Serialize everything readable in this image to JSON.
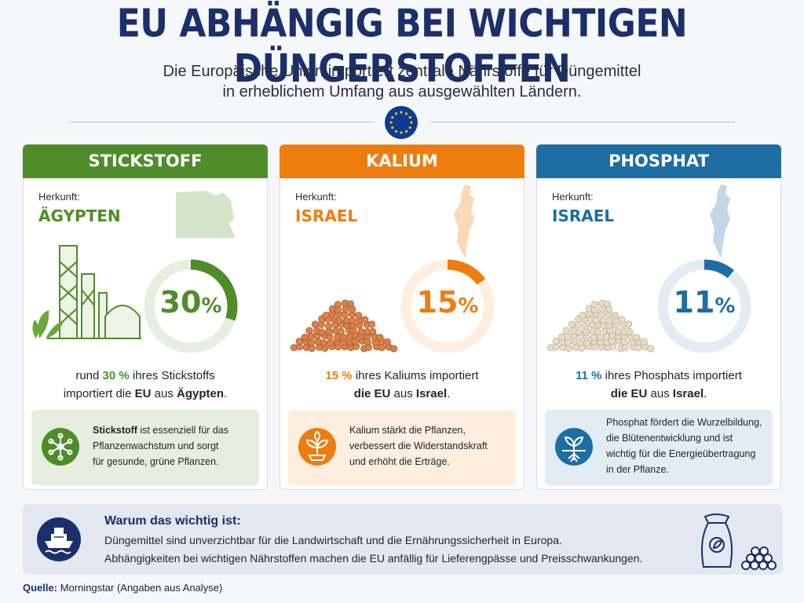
{
  "header": {
    "title": "EU ABHÄNGIG BEI WICHTIGEN DÜNGERSTOFFEN",
    "subtitle_line1": "Die Europäische Union importiert zentrale Nährstoffe für Düngemittel",
    "subtitle_line2": "in erheblichem Umfang aus ausgewählten Ländern."
  },
  "cards": [
    {
      "name": "STICKSTOFF",
      "color": "#4f8c2a",
      "light_color": "#e7eedf",
      "origin_label": "Herkunft:",
      "origin": "ÄGYPTEN",
      "percent_value": 30,
      "percent_number": "30",
      "percent_sign": "%",
      "statement": {
        "a1": "rund ",
        "a2": "30 %",
        "a3": " ihres Stickstoffs",
        "b1": "importiert die ",
        "b2": "EU",
        "b3": " aus ",
        "b4": "Ägypten",
        "b5": "."
      },
      "info_bold": "Stickstoff",
      "info_line1": " ist essenziell für das",
      "info_line2": "Pflanzenwachstum und sorgt",
      "info_line3": "für gesunde, grüne Pflanzen.",
      "info_line4": "",
      "info_icon": "molecule-icon",
      "illustration": "fertilizer-plant-illustration"
    },
    {
      "name": "KALIUM",
      "color": "#ee7d0f",
      "light_color": "#fdeee0",
      "origin_label": "Herkunft:",
      "origin": "ISRAEL",
      "percent_value": 15,
      "percent_number": "15",
      "percent_sign": "%",
      "statement": {
        "a1": "",
        "a2": "15 %",
        "a3": " ihres Kaliums importiert",
        "b1": "",
        "b2": "die EU",
        "b3": " aus ",
        "b4": "Israel",
        "b5": "."
      },
      "info_bold": "",
      "info_line1": "Kalium stärkt die Pflanzen,",
      "info_line2": "verbessert die Widerstandskraft",
      "info_line3": "und erhöht die Erträge.",
      "info_line4": "",
      "info_icon": "sprout-icon",
      "illustration": "potash-granules-illustration"
    },
    {
      "name": "PHOSPHAT",
      "color": "#1c6ea4",
      "light_color": "#e3ebf3",
      "origin_label": "Herkunft:",
      "origin": "ISRAEL",
      "percent_value": 11,
      "percent_number": "11",
      "percent_sign": "%",
      "statement": {
        "a1": "",
        "a2": "11 %",
        "a3": " ihres Phosphats importiert",
        "b1": "",
        "b2": "die EU",
        "b3": " aus ",
        "b4": "Israel",
        "b5": "."
      },
      "info_bold": "",
      "info_line1": "Phosphat fördert die Wurzelbildung,",
      "info_line2": "die Blütenentwicklung und ist",
      "info_line3": "wichtig für die Energieübertragung",
      "info_line4": "in der Pflanze.",
      "info_icon": "root-plant-icon",
      "illustration": "phosphate-granules-illustration"
    }
  ],
  "why": {
    "title": "Warum das wichtig ist:",
    "line1": "Düngemittel sind unverzichtbar für die Landwirtschaft und die Ernährungssicherheit in Europa.",
    "line2": "Abhängigkeiten bei wichtigen Nährstoffen machen die EU anfällig für Lieferengpässe und Preisschwankungen.",
    "icon": "cargo-ship-icon",
    "side_icon": "fertilizer-sack-icon"
  },
  "source": {
    "label": "Quelle:",
    "text": " Morningstar (Angaben aus Analyse)"
  },
  "colors": {
    "title": "#1b2f6b",
    "eu_blue": "#0d3a93",
    "eu_star": "#f5c400"
  }
}
